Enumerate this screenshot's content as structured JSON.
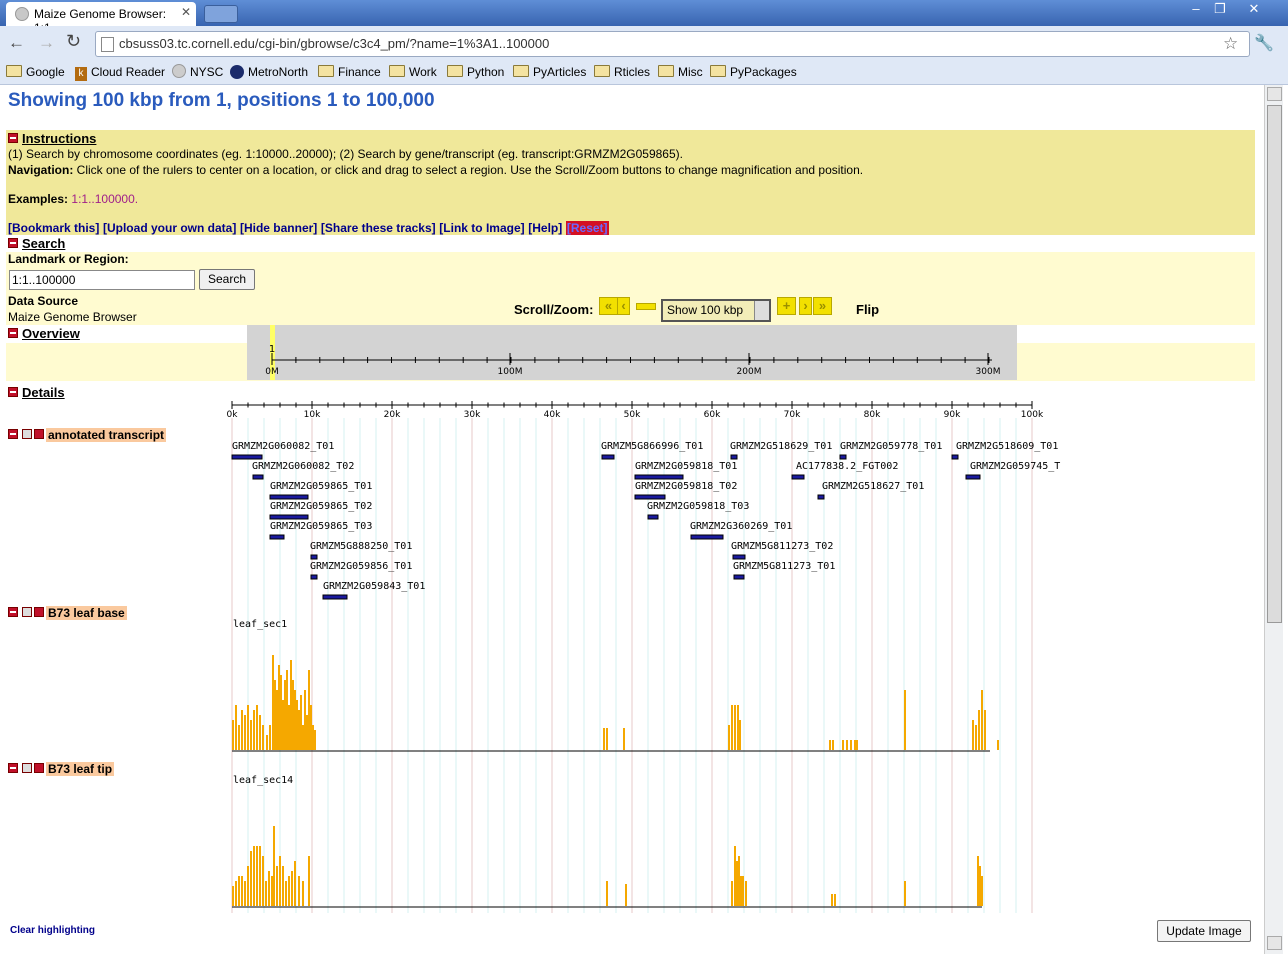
{
  "browser": {
    "tab_title": "Maize Genome Browser: 1:1...",
    "url": "cbsuss03.tc.cornell.edu/cgi-bin/gbrowse/c3c4_pm/?name=1%3A1..100000",
    "bookmarks": [
      "Google",
      "Cloud Reader",
      "NYSC",
      "MetroNorth",
      "Finance",
      "Work",
      "Python",
      "PyArticles",
      "Rticles",
      "Misc",
      "PyPackages"
    ]
  },
  "page": {
    "heading": "Showing 100 kbp from 1, positions 1 to 100,000",
    "instructions_title": "Instructions",
    "instructions_line1": "(1) Search by chromosome coordinates (eg. 1:10000..20000); (2) Search by gene/transcript (eg. transcript:GRMZM2G059865).",
    "nav_label": "Navigation:",
    "nav_text": " Click one of the rulers to center on a location, or click and drag to select a region. Use the Scroll/Zoom buttons to change magnification and position.",
    "examples_label": "Examples",
    "examples_value": "1:1..100000",
    "links": [
      "[Bookmark this]",
      "[Upload your own data]",
      "[Hide banner]",
      "[Share these tracks]",
      "[Link to Image]",
      "[Help]"
    ],
    "reset": "[Reset]",
    "search_title": "Search",
    "landmark_label": "Landmark or Region:",
    "landmark_value": "1:1..100000",
    "search_button": "Search",
    "datasource_label": "Data Source",
    "datasource_value": "Maize Genome Browser",
    "scroll_zoom_label": "Scroll/Zoom:",
    "zoom_select": "Show 100 kbp",
    "flip_label": "Flip",
    "overview_title": "Overview",
    "details_title": "Details",
    "clear_highlighting": "Clear highlighting",
    "update_image": "Update Image"
  },
  "overview": {
    "ticks": [
      "0M",
      "100M",
      "200M",
      "300M"
    ],
    "marker_label": "1"
  },
  "details": {
    "ruler_ticks": [
      "0k",
      "10k",
      "20k",
      "30k",
      "40k",
      "50k",
      "60k",
      "70k",
      "80k",
      "90k",
      "100k"
    ]
  },
  "tracks": {
    "annotated": {
      "label": "annotated transcript",
      "features": [
        "GRMZM2G060082_T01",
        "GRMZM2G060082_T02",
        "GRMZM2G059865_T01",
        "GRMZM2G059865_T02",
        "GRMZM2G059865_T03",
        "GRMZM5G888250_T01",
        "GRMZM2G059856_T01",
        "GRMZM2G059843_T01",
        "GRMZM5G866996_T01",
        "GRMZM2G059818_T01",
        "GRMZM2G059818_T02",
        "GRMZM2G059818_T03",
        "GRMZM2G360269_T01",
        "GRMZM2G518629_T01",
        "GRMZM5G811273_T02",
        "GRMZM5G811273_T01",
        "AC177838.2_FGT002",
        "GRMZM2G059778_T01",
        "GRMZM2G518627_T01",
        "GRMZM2G518609_T01",
        "GRMZM2G059745_T"
      ]
    },
    "leaf_base": {
      "label": "B73 leaf base",
      "sublabel": "leaf_sec1",
      "color": "#f5a800"
    },
    "leaf_tip": {
      "label": "B73 leaf tip",
      "sublabel": "leaf_sec14",
      "color": "#f5a800"
    }
  }
}
